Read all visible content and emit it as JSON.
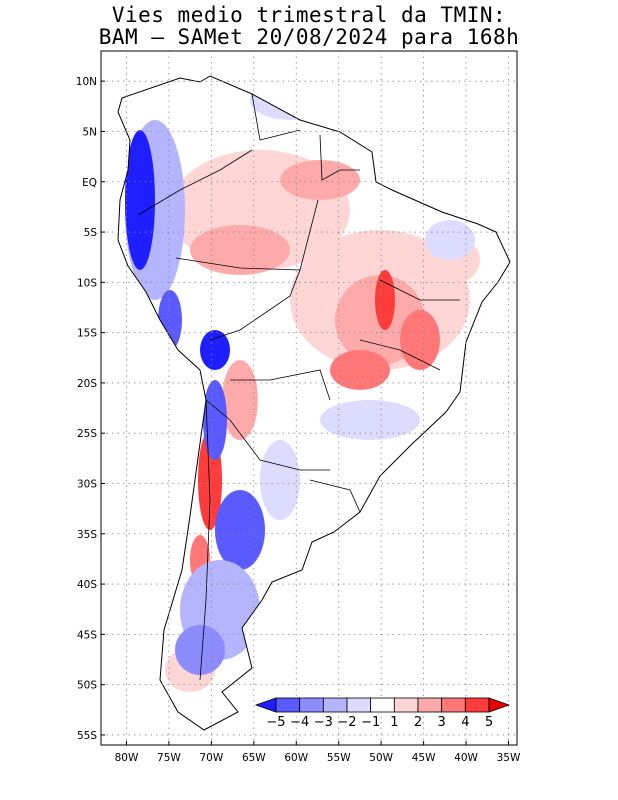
{
  "title": {
    "line1": "Vies medio trimestral da TMIN:",
    "line2": "BAM – SAMet 20/08/2024  para 168h"
  },
  "map": {
    "region": "South America",
    "lon_range": [
      -83,
      -34
    ],
    "lat_range": [
      -56,
      13
    ],
    "grid": "dotted",
    "lat_ticks": [
      "10N",
      "5N",
      "EQ",
      "5S",
      "10S",
      "15S",
      "20S",
      "25S",
      "30S",
      "35S",
      "40S",
      "45S",
      "50S",
      "55S"
    ],
    "lon_ticks": [
      "80W",
      "75W",
      "70W",
      "65W",
      "60W",
      "55W",
      "50W",
      "45W",
      "40W",
      "35W"
    ]
  },
  "colorbar": {
    "labels": [
      "−5",
      "−4",
      "−3",
      "−2",
      "−1",
      "1",
      "2",
      "3",
      "4",
      "5"
    ],
    "colors": [
      "#1e1eff",
      "#5a5aff",
      "#8c8cff",
      "#b4b4ff",
      "#dcdcff",
      "#ffffff",
      "#ffd6d6",
      "#ffaaaa",
      "#ff7777",
      "#ff3c3c",
      "#e60000"
    ]
  }
}
